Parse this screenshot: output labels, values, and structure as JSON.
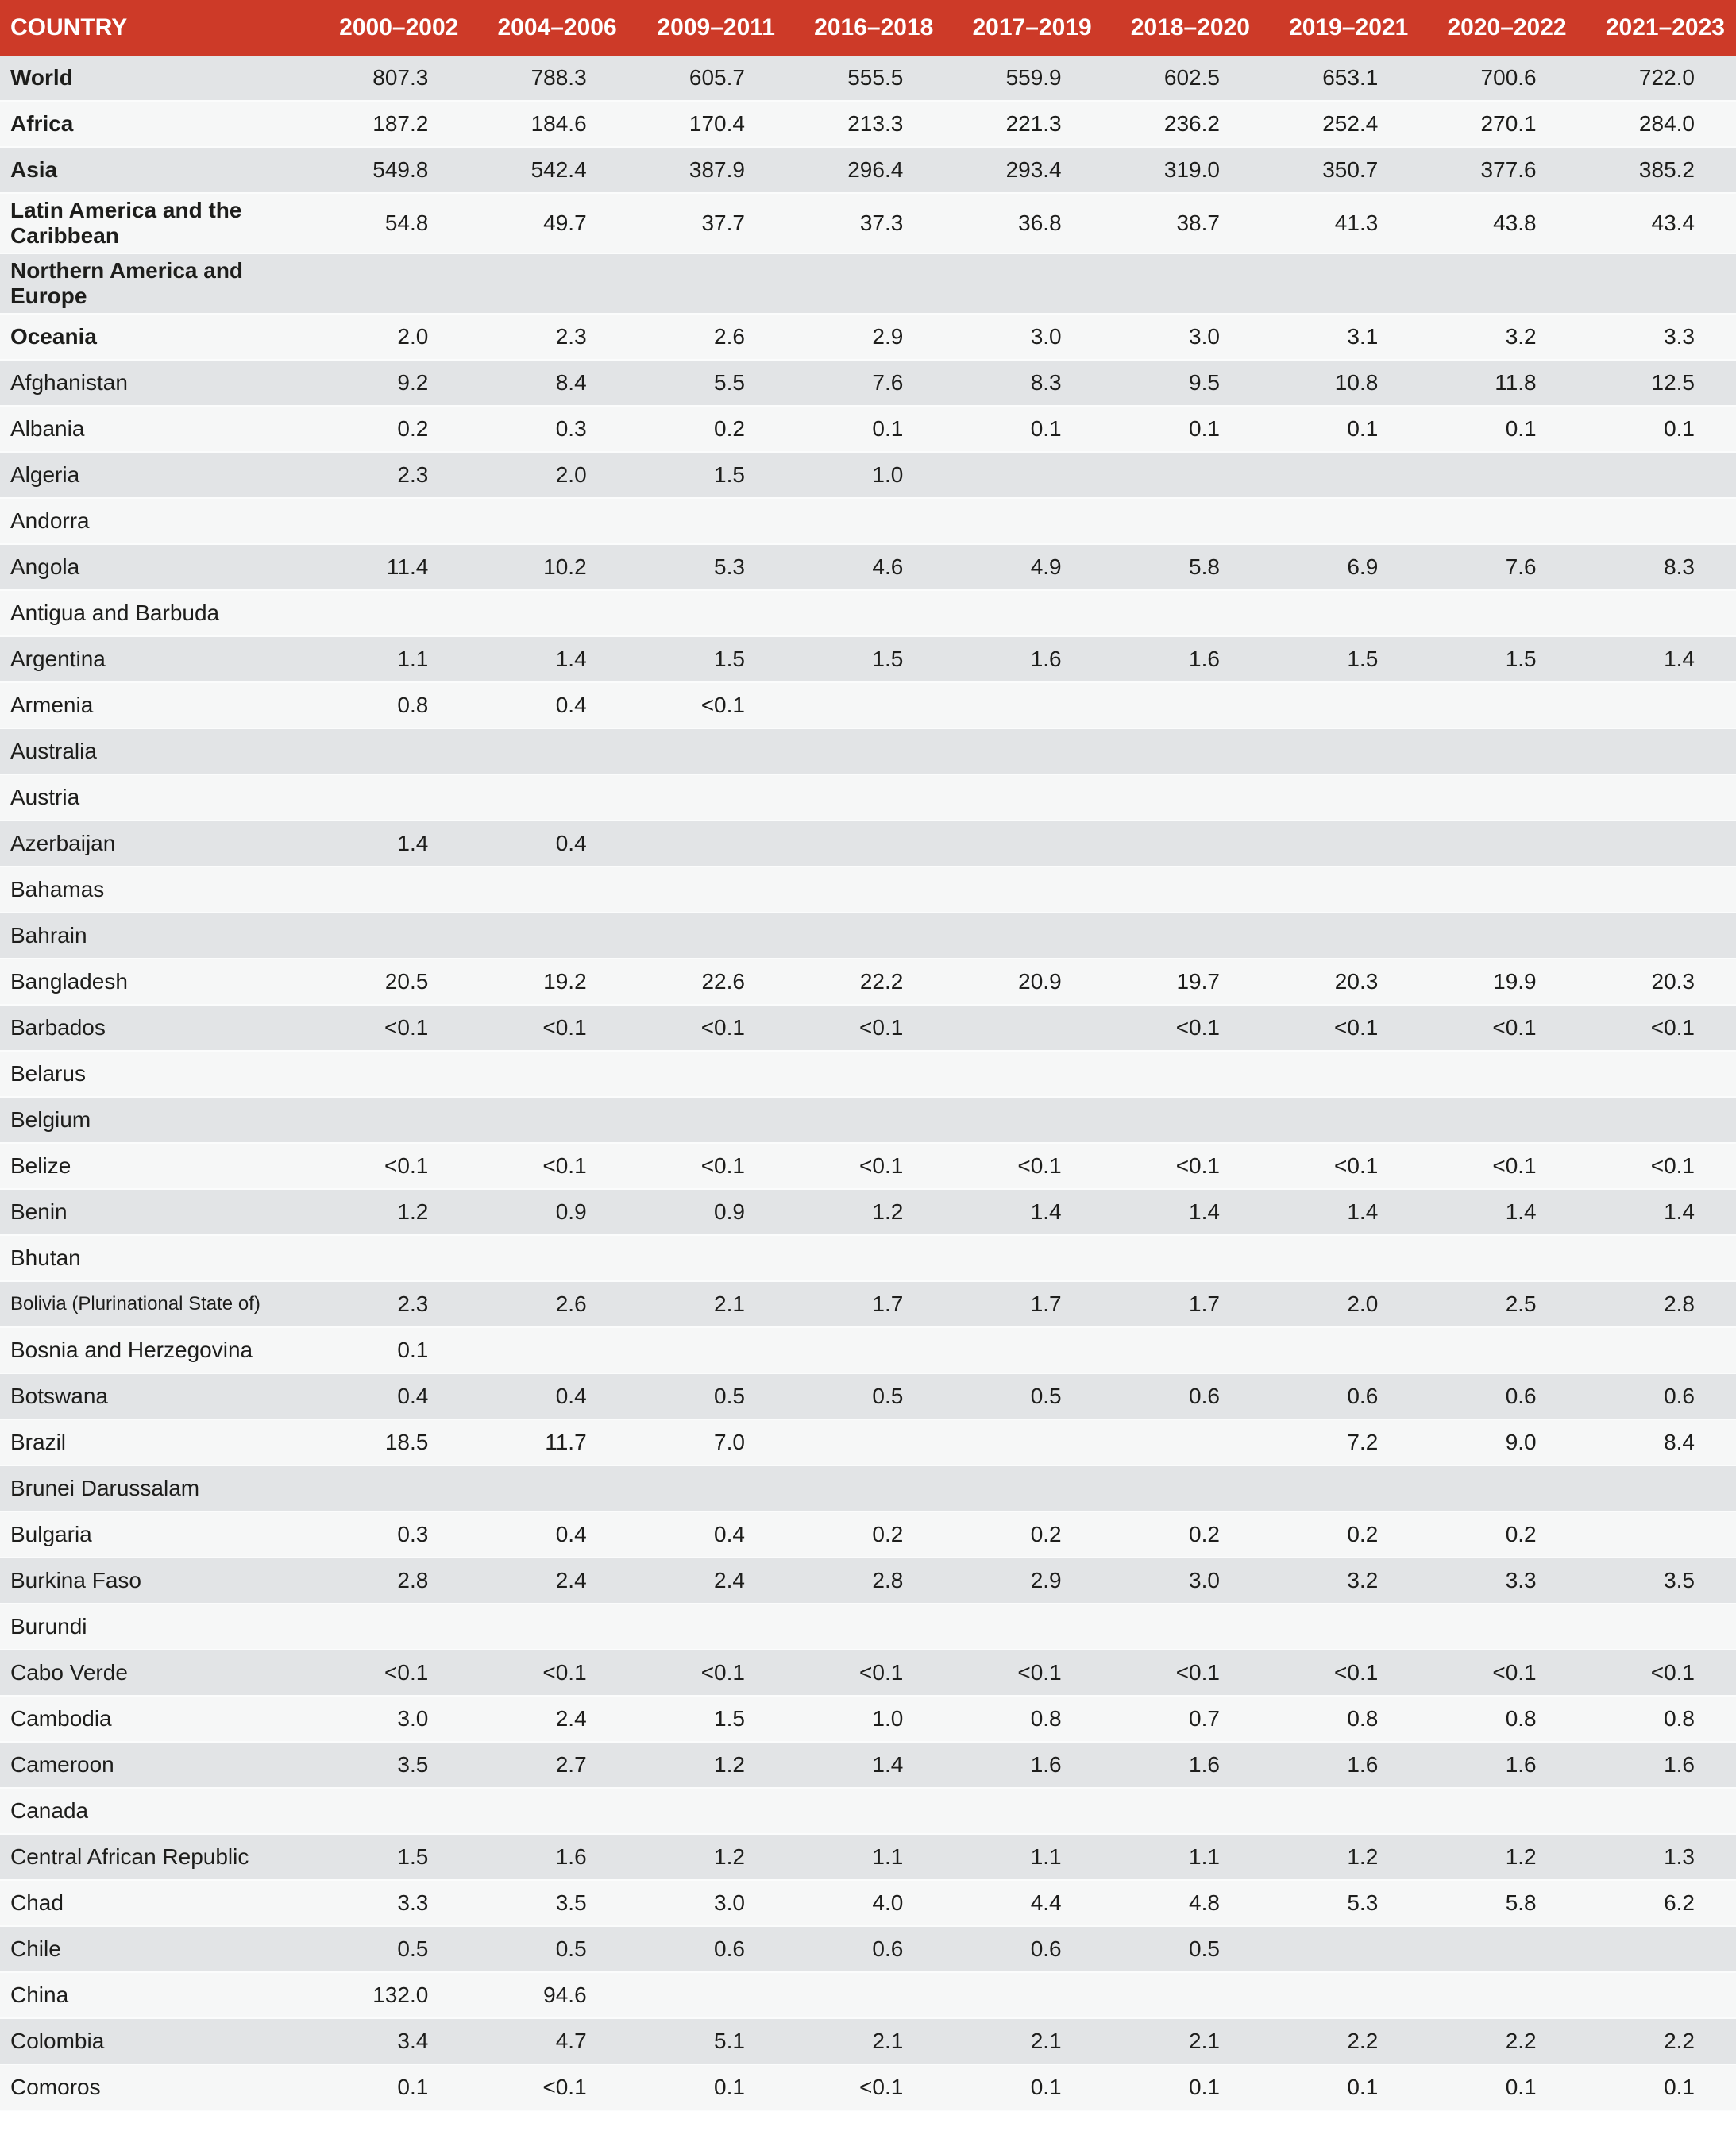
{
  "table": {
    "colors": {
      "header_bg": "#cd3a28",
      "header_text": "#ffffff",
      "row_gray": "#e2e4e6",
      "row_white": "#f6f7f7",
      "text": "#1d1d1b"
    },
    "header": {
      "country_label": "COUNTRY",
      "periods": [
        "2000–2002",
        "2004–2006",
        "2009–2011",
        "2016–2018",
        "2017–2019",
        "2018–2020",
        "2019–2021",
        "2020–2022",
        "2021–2023"
      ]
    },
    "rows": [
      {
        "name": "World",
        "bold": true,
        "values": [
          "807.3",
          "788.3",
          "605.7",
          "555.5",
          "559.9",
          "602.5",
          "653.1",
          "700.6",
          "722.0"
        ]
      },
      {
        "name": "Africa",
        "bold": true,
        "values": [
          "187.2",
          "184.6",
          "170.4",
          "213.3",
          "221.3",
          "236.2",
          "252.4",
          "270.1",
          "284.0"
        ]
      },
      {
        "name": "Asia",
        "bold": true,
        "values": [
          "549.8",
          "542.4",
          "387.9",
          "296.4",
          "293.4",
          "319.0",
          "350.7",
          "377.6",
          "385.2"
        ]
      },
      {
        "name": "Latin America and the Caribbean",
        "bold": true,
        "values": [
          "54.8",
          "49.7",
          "37.7",
          "37.3",
          "36.8",
          "38.7",
          "41.3",
          "43.8",
          "43.4"
        ]
      },
      {
        "name": "Northern America and Europe",
        "bold": true,
        "values": [
          "",
          "",
          "",
          "",
          "",
          "",
          "",
          "",
          ""
        ]
      },
      {
        "name": "Oceania",
        "bold": true,
        "values": [
          "2.0",
          "2.3",
          "2.6",
          "2.9",
          "3.0",
          "3.0",
          "3.1",
          "3.2",
          "3.3"
        ]
      },
      {
        "name": "Afghanistan",
        "bold": false,
        "values": [
          "9.2",
          "8.4",
          "5.5",
          "7.6",
          "8.3",
          "9.5",
          "10.8",
          "11.8",
          "12.5"
        ]
      },
      {
        "name": "Albania",
        "bold": false,
        "values": [
          "0.2",
          "0.3",
          "0.2",
          "0.1",
          "0.1",
          "0.1",
          "0.1",
          "0.1",
          "0.1"
        ]
      },
      {
        "name": "Algeria",
        "bold": false,
        "values": [
          "2.3",
          "2.0",
          "1.5",
          "1.0",
          "",
          "",
          "",
          "",
          ""
        ]
      },
      {
        "name": "Andorra",
        "bold": false,
        "values": [
          "",
          "",
          "",
          "",
          "",
          "",
          "",
          "",
          ""
        ]
      },
      {
        "name": "Angola",
        "bold": false,
        "values": [
          "11.4",
          "10.2",
          "5.3",
          "4.6",
          "4.9",
          "5.8",
          "6.9",
          "7.6",
          "8.3"
        ]
      },
      {
        "name": "Antigua and Barbuda",
        "bold": false,
        "values": [
          "",
          "",
          "",
          "",
          "",
          "",
          "",
          "",
          ""
        ]
      },
      {
        "name": "Argentina",
        "bold": false,
        "values": [
          "1.1",
          "1.4",
          "1.5",
          "1.5",
          "1.6",
          "1.6",
          "1.5",
          "1.5",
          "1.4"
        ]
      },
      {
        "name": "Armenia",
        "bold": false,
        "values": [
          "0.8",
          "0.4",
          "<0.1",
          "",
          "",
          "",
          "",
          "",
          ""
        ]
      },
      {
        "name": "Australia",
        "bold": false,
        "values": [
          "",
          "",
          "",
          "",
          "",
          "",
          "",
          "",
          ""
        ]
      },
      {
        "name": "Austria",
        "bold": false,
        "values": [
          "",
          "",
          "",
          "",
          "",
          "",
          "",
          "",
          ""
        ]
      },
      {
        "name": "Azerbaijan",
        "bold": false,
        "values": [
          "1.4",
          "0.4",
          "",
          "",
          "",
          "",
          "",
          "",
          ""
        ]
      },
      {
        "name": "Bahamas",
        "bold": false,
        "values": [
          "",
          "",
          "",
          "",
          "",
          "",
          "",
          "",
          ""
        ]
      },
      {
        "name": "Bahrain",
        "bold": false,
        "values": [
          "",
          "",
          "",
          "",
          "",
          "",
          "",
          "",
          ""
        ]
      },
      {
        "name": "Bangladesh",
        "bold": false,
        "values": [
          "20.5",
          "19.2",
          "22.6",
          "22.2",
          "20.9",
          "19.7",
          "20.3",
          "19.9",
          "20.3"
        ]
      },
      {
        "name": "Barbados",
        "bold": false,
        "values": [
          "<0.1",
          "<0.1",
          "<0.1",
          "<0.1",
          "",
          "<0.1",
          "<0.1",
          "<0.1",
          "<0.1"
        ]
      },
      {
        "name": "Belarus",
        "bold": false,
        "values": [
          "",
          "",
          "",
          "",
          "",
          "",
          "",
          "",
          ""
        ]
      },
      {
        "name": "Belgium",
        "bold": false,
        "values": [
          "",
          "",
          "",
          "",
          "",
          "",
          "",
          "",
          ""
        ]
      },
      {
        "name": "Belize",
        "bold": false,
        "values": [
          "<0.1",
          "<0.1",
          "<0.1",
          "<0.1",
          "<0.1",
          "<0.1",
          "<0.1",
          "<0.1",
          "<0.1"
        ]
      },
      {
        "name": "Benin",
        "bold": false,
        "values": [
          "1.2",
          "0.9",
          "0.9",
          "1.2",
          "1.4",
          "1.4",
          "1.4",
          "1.4",
          "1.4"
        ]
      },
      {
        "name": "Bhutan",
        "bold": false,
        "values": [
          "",
          "",
          "",
          "",
          "",
          "",
          "",
          "",
          ""
        ]
      },
      {
        "name": "Bolivia (Plurinational State of)",
        "bold": false,
        "name_small": true,
        "values": [
          "2.3",
          "2.6",
          "2.1",
          "1.7",
          "1.7",
          "1.7",
          "2.0",
          "2.5",
          "2.8"
        ]
      },
      {
        "name": "Bosnia and Herzegovina",
        "bold": false,
        "values": [
          "0.1",
          "",
          "",
          "",
          "",
          "",
          "",
          "",
          ""
        ]
      },
      {
        "name": "Botswana",
        "bold": false,
        "values": [
          "0.4",
          "0.4",
          "0.5",
          "0.5",
          "0.5",
          "0.6",
          "0.6",
          "0.6",
          "0.6"
        ]
      },
      {
        "name": "Brazil",
        "bold": false,
        "values": [
          "18.5",
          "11.7",
          "7.0",
          "",
          "",
          "",
          "7.2",
          "9.0",
          "8.4"
        ]
      },
      {
        "name": "Brunei Darussalam",
        "bold": false,
        "values": [
          "",
          "",
          "",
          "",
          "",
          "",
          "",
          "",
          ""
        ]
      },
      {
        "name": "Bulgaria",
        "bold": false,
        "values": [
          "0.3",
          "0.4",
          "0.4",
          "0.2",
          "0.2",
          "0.2",
          "0.2",
          "0.2",
          ""
        ]
      },
      {
        "name": "Burkina Faso",
        "bold": false,
        "values": [
          "2.8",
          "2.4",
          "2.4",
          "2.8",
          "2.9",
          "3.0",
          "3.2",
          "3.3",
          "3.5"
        ]
      },
      {
        "name": "Burundi",
        "bold": false,
        "values": [
          "",
          "",
          "",
          "",
          "",
          "",
          "",
          "",
          ""
        ]
      },
      {
        "name": "Cabo Verde",
        "bold": false,
        "values": [
          "<0.1",
          "<0.1",
          "<0.1",
          "<0.1",
          "<0.1",
          "<0.1",
          "<0.1",
          "<0.1",
          "<0.1"
        ]
      },
      {
        "name": "Cambodia",
        "bold": false,
        "values": [
          "3.0",
          "2.4",
          "1.5",
          "1.0",
          "0.8",
          "0.7",
          "0.8",
          "0.8",
          "0.8"
        ]
      },
      {
        "name": "Cameroon",
        "bold": false,
        "values": [
          "3.5",
          "2.7",
          "1.2",
          "1.4",
          "1.6",
          "1.6",
          "1.6",
          "1.6",
          "1.6"
        ]
      },
      {
        "name": "Canada",
        "bold": false,
        "values": [
          "",
          "",
          "",
          "",
          "",
          "",
          "",
          "",
          ""
        ]
      },
      {
        "name": "Central African Republic",
        "bold": false,
        "values": [
          "1.5",
          "1.6",
          "1.2",
          "1.1",
          "1.1",
          "1.1",
          "1.2",
          "1.2",
          "1.3"
        ]
      },
      {
        "name": "Chad",
        "bold": false,
        "values": [
          "3.3",
          "3.5",
          "3.0",
          "4.0",
          "4.4",
          "4.8",
          "5.3",
          "5.8",
          "6.2"
        ]
      },
      {
        "name": "Chile",
        "bold": false,
        "values": [
          "0.5",
          "0.5",
          "0.6",
          "0.6",
          "0.6",
          "0.5",
          "",
          "",
          ""
        ]
      },
      {
        "name": "China",
        "bold": false,
        "values": [
          "132.0",
          "94.6",
          "",
          "",
          "",
          "",
          "",
          "",
          ""
        ]
      },
      {
        "name": "Colombia",
        "bold": false,
        "values": [
          "3.4",
          "4.7",
          "5.1",
          "2.1",
          "2.1",
          "2.1",
          "2.2",
          "2.2",
          "2.2"
        ]
      },
      {
        "name": "Comoros",
        "bold": false,
        "values": [
          "0.1",
          "<0.1",
          "0.1",
          "<0.1",
          "0.1",
          "0.1",
          "0.1",
          "0.1",
          "0.1"
        ]
      }
    ]
  }
}
